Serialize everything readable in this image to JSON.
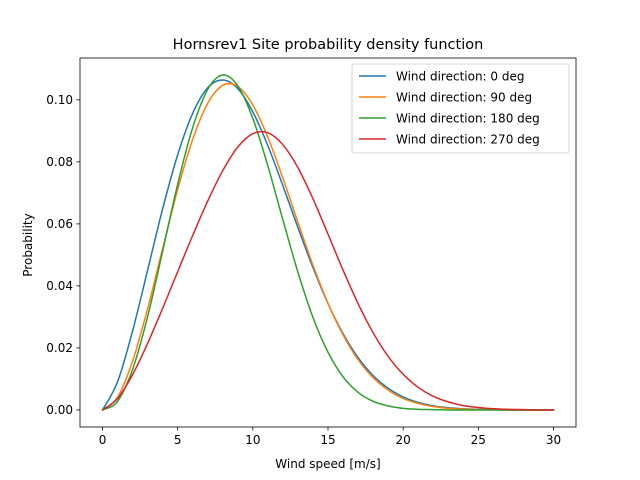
{
  "chart_data": {
    "type": "line",
    "title": "Hornsrev1 Site probability density function",
    "xlabel": "Wind speed [m/s]",
    "ylabel": "Probability",
    "xlim": [
      -1.5,
      31.5
    ],
    "ylim": [
      -0.0055,
      0.1135
    ],
    "xticks": [
      0,
      5,
      10,
      15,
      20,
      25,
      30
    ],
    "xtick_labels": [
      "0",
      "5",
      "10",
      "15",
      "20",
      "25",
      "30"
    ],
    "yticks": [
      0.0,
      0.02,
      0.04,
      0.06,
      0.08,
      0.1
    ],
    "ytick_labels": [
      "0.00",
      "0.02",
      "0.04",
      "0.06",
      "0.08",
      "0.10"
    ],
    "grid": false,
    "legend_position": "top-right",
    "x": [
      0,
      1,
      2,
      3,
      4,
      5,
      6,
      7,
      8,
      9,
      10,
      11,
      12,
      13,
      14,
      15,
      16,
      17,
      18,
      19,
      20,
      21,
      22,
      23,
      24,
      25,
      26,
      27,
      28,
      29,
      30
    ],
    "series": [
      {
        "name": "Wind direction: 0 deg",
        "color": "#1f77b4",
        "values": [
          0.0,
          0.0091,
          0.0255,
          0.0451,
          0.0649,
          0.0823,
          0.0957,
          0.1039,
          0.1064,
          0.1036,
          0.0961,
          0.0852,
          0.0723,
          0.0588,
          0.0459,
          0.0343,
          0.0246,
          0.0169,
          0.0111,
          0.007,
          0.0042,
          0.0024,
          0.0013,
          0.0007,
          0.0004,
          0.0002,
          0.0001,
          0.0,
          0.0,
          0.0,
          0.0
        ]
      },
      {
        "name": "Wind direction: 90 deg",
        "color": "#ff7f0e",
        "values": [
          0.0,
          0.0041,
          0.0158,
          0.0327,
          0.0521,
          0.0711,
          0.0873,
          0.0989,
          0.1047,
          0.1043,
          0.0983,
          0.0879,
          0.0747,
          0.0605,
          0.0467,
          0.0344,
          0.0242,
          0.0162,
          0.0104,
          0.0064,
          0.0037,
          0.0021,
          0.0011,
          0.0005,
          0.0003,
          0.0001,
          0.0001,
          0.0,
          0.0,
          0.0,
          0.0
        ]
      },
      {
        "name": "Wind direction: 180 deg",
        "color": "#2ca02c",
        "values": [
          0.0,
          0.0028,
          0.0131,
          0.0301,
          0.0512,
          0.0728,
          0.0911,
          0.1034,
          0.108,
          0.1045,
          0.094,
          0.0787,
          0.0613,
          0.0444,
          0.0298,
          0.0186,
          0.0107,
          0.0057,
          0.0028,
          0.0013,
          0.0005,
          0.0002,
          0.0001,
          0.0,
          0.0,
          0.0,
          0.0,
          0.0,
          0.0,
          0.0,
          0.0
        ]
      },
      {
        "name": "Wind direction: 270 deg",
        "color": "#d62728",
        "values": [
          0.0,
          0.0037,
          0.0114,
          0.0215,
          0.0328,
          0.0446,
          0.0563,
          0.0674,
          0.0772,
          0.0848,
          0.0891,
          0.0894,
          0.0855,
          0.0781,
          0.0681,
          0.0567,
          0.0451,
          0.0343,
          0.0249,
          0.0173,
          0.0115,
          0.0073,
          0.0044,
          0.0026,
          0.0014,
          0.0008,
          0.0004,
          0.0002,
          0.0001,
          0.0,
          0.0
        ]
      }
    ]
  }
}
